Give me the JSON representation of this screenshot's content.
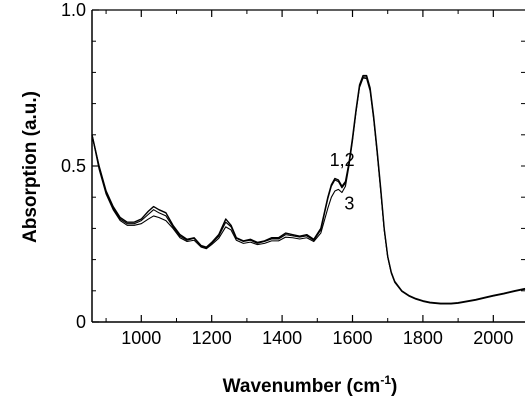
{
  "chart_data": {
    "type": "line",
    "title": "",
    "xlabel": "Wavenumber (cm",
    "xlabel_sup": "-1",
    "xlabel_close": ")",
    "ylabel": "Absorption (a.u.)",
    "xlim": [
      860,
      2090
    ],
    "ylim": [
      0,
      1.0
    ],
    "x_ticks": [
      1000,
      1200,
      1400,
      1600,
      1800,
      2000
    ],
    "x_tick_labels": [
      "1000",
      "1200",
      "1400",
      "1600",
      "1800",
      "2000"
    ],
    "y_ticks": [
      0,
      0.5,
      1.0
    ],
    "y_tick_labels": [
      "0",
      "0.5",
      "1.0"
    ],
    "grid": false,
    "annotations": [
      {
        "text": "1,2",
        "x": 1535,
        "y": 0.5
      },
      {
        "text": "3",
        "x": 1577,
        "y": 0.36
      }
    ],
    "series": [
      {
        "x": [
          860,
          880,
          900,
          920,
          940,
          960,
          980,
          1000,
          1020,
          1035,
          1050,
          1070,
          1090,
          1110,
          1130,
          1150,
          1170,
          1185,
          1200,
          1220,
          1240,
          1255,
          1270,
          1290,
          1310,
          1330,
          1350,
          1370,
          1390,
          1410,
          1430,
          1450,
          1470,
          1490,
          1510,
          1520,
          1530,
          1540,
          1550,
          1560,
          1570,
          1580,
          1590,
          1600,
          1610,
          1620,
          1630,
          1640,
          1650,
          1660,
          1670,
          1680,
          1690,
          1700,
          1710,
          1720,
          1740,
          1760,
          1780,
          1800,
          1820,
          1850,
          1880,
          1900,
          1920,
          1950,
          1980,
          2000,
          2030,
          2060,
          2090
        ],
        "values": [
          0.6,
          0.5,
          0.42,
          0.37,
          0.335,
          0.32,
          0.32,
          0.33,
          0.355,
          0.37,
          0.36,
          0.35,
          0.31,
          0.28,
          0.265,
          0.27,
          0.245,
          0.24,
          0.255,
          0.28,
          0.33,
          0.31,
          0.27,
          0.26,
          0.265,
          0.255,
          0.26,
          0.27,
          0.27,
          0.285,
          0.28,
          0.275,
          0.28,
          0.265,
          0.3,
          0.35,
          0.4,
          0.44,
          0.46,
          0.455,
          0.435,
          0.45,
          0.51,
          0.59,
          0.68,
          0.76,
          0.79,
          0.79,
          0.75,
          0.66,
          0.55,
          0.43,
          0.3,
          0.21,
          0.16,
          0.13,
          0.1,
          0.085,
          0.075,
          0.068,
          0.063,
          0.06,
          0.06,
          0.062,
          0.066,
          0.072,
          0.08,
          0.085,
          0.092,
          0.1,
          0.107
        ]
      },
      {
        "x": [
          860,
          880,
          900,
          920,
          940,
          960,
          980,
          1000,
          1020,
          1035,
          1050,
          1070,
          1090,
          1110,
          1130,
          1150,
          1170,
          1185,
          1200,
          1220,
          1240,
          1255,
          1270,
          1290,
          1310,
          1330,
          1350,
          1370,
          1390,
          1410,
          1430,
          1450,
          1470,
          1490,
          1510,
          1520,
          1530,
          1540,
          1550,
          1560,
          1570,
          1580,
          1590,
          1600,
          1610,
          1620,
          1630,
          1640,
          1650,
          1660,
          1670,
          1680,
          1690,
          1700,
          1710,
          1720,
          1740,
          1760,
          1780,
          1800,
          1820,
          1850,
          1880,
          1900,
          1920,
          1950,
          1980,
          2000,
          2030,
          2060,
          2090
        ],
        "values": [
          0.6,
          0.5,
          0.415,
          0.365,
          0.33,
          0.315,
          0.315,
          0.325,
          0.345,
          0.36,
          0.35,
          0.34,
          0.305,
          0.275,
          0.262,
          0.268,
          0.243,
          0.238,
          0.252,
          0.275,
          0.32,
          0.305,
          0.268,
          0.258,
          0.262,
          0.252,
          0.258,
          0.266,
          0.266,
          0.28,
          0.276,
          0.272,
          0.276,
          0.262,
          0.295,
          0.345,
          0.395,
          0.435,
          0.455,
          0.45,
          0.43,
          0.445,
          0.505,
          0.585,
          0.675,
          0.755,
          0.785,
          0.785,
          0.745,
          0.655,
          0.545,
          0.425,
          0.298,
          0.21,
          0.158,
          0.128,
          0.099,
          0.084,
          0.074,
          0.067,
          0.062,
          0.059,
          0.059,
          0.061,
          0.065,
          0.071,
          0.079,
          0.084,
          0.091,
          0.099,
          0.106
        ]
      },
      {
        "x": [
          860,
          880,
          900,
          920,
          940,
          960,
          980,
          1000,
          1020,
          1035,
          1050,
          1070,
          1090,
          1110,
          1130,
          1150,
          1170,
          1185,
          1200,
          1220,
          1240,
          1255,
          1270,
          1290,
          1310,
          1330,
          1350,
          1370,
          1390,
          1410,
          1430,
          1450,
          1470,
          1490,
          1510,
          1520,
          1530,
          1540,
          1550,
          1560,
          1570,
          1580,
          1590,
          1600,
          1610,
          1620,
          1630,
          1640,
          1650,
          1660,
          1670,
          1680,
          1690,
          1700,
          1710,
          1720,
          1740,
          1760,
          1780,
          1800,
          1820,
          1850,
          1880,
          1900,
          1920,
          1950,
          1980,
          2000,
          2030,
          2060,
          2090
        ],
        "values": [
          0.6,
          0.49,
          0.41,
          0.36,
          0.325,
          0.31,
          0.31,
          0.315,
          0.33,
          0.34,
          0.335,
          0.325,
          0.3,
          0.27,
          0.258,
          0.262,
          0.24,
          0.235,
          0.248,
          0.268,
          0.305,
          0.295,
          0.262,
          0.252,
          0.256,
          0.248,
          0.252,
          0.26,
          0.26,
          0.272,
          0.27,
          0.266,
          0.27,
          0.258,
          0.285,
          0.325,
          0.365,
          0.4,
          0.42,
          0.425,
          0.415,
          0.435,
          0.5,
          0.58,
          0.672,
          0.752,
          0.782,
          0.78,
          0.74,
          0.65,
          0.54,
          0.42,
          0.295,
          0.208,
          0.157,
          0.127,
          0.098,
          0.083,
          0.073,
          0.066,
          0.061,
          0.058,
          0.058,
          0.06,
          0.064,
          0.07,
          0.078,
          0.083,
          0.09,
          0.098,
          0.105
        ]
      }
    ]
  }
}
